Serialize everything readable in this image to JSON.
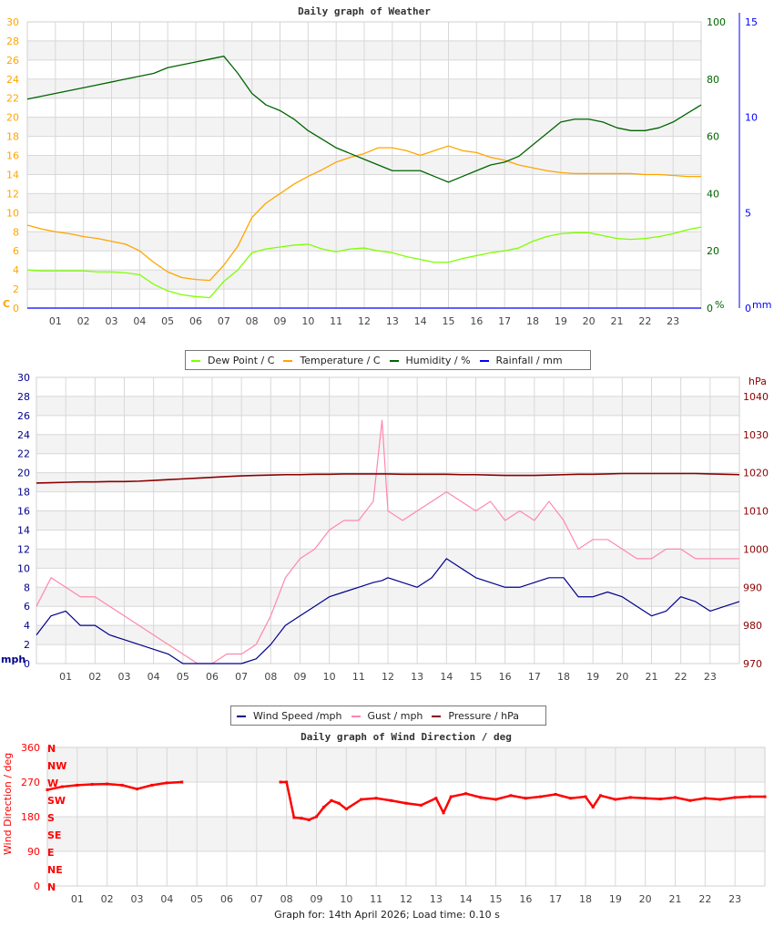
{
  "footer": "Graph for: 14th April 2026; Load time: 0.10 s",
  "colors": {
    "dew_point": "#7fff00",
    "temperature": "#ffa500",
    "humidity": "#006400",
    "rainfall": "#0000ff",
    "wind_speed": "#00008b",
    "gust": "#ff88aa",
    "pressure": "#8b0000",
    "direction": "#ff0000"
  },
  "chart_data": [
    {
      "type": "line",
      "title": "Daily graph of Weather",
      "x_ticks": [
        "01",
        "02",
        "03",
        "04",
        "05",
        "06",
        "07",
        "08",
        "09",
        "10",
        "11",
        "12",
        "13",
        "14",
        "15",
        "16",
        "17",
        "18",
        "19",
        "20",
        "21",
        "22",
        "23"
      ],
      "x_range_hours": [
        0,
        24
      ],
      "axes": {
        "left": {
          "label": "C",
          "ylim": [
            0,
            30
          ],
          "ticks": [
            "0",
            "2",
            "4",
            "6",
            "8",
            "10",
            "12",
            "14",
            "16",
            "18",
            "20",
            "22",
            "24",
            "26",
            "28",
            "30"
          ]
        },
        "right1": {
          "label": "%",
          "ylim": [
            0,
            100
          ],
          "ticks": [
            "0",
            "20",
            "40",
            "60",
            "80",
            "100"
          ]
        },
        "right2": {
          "label": "mm",
          "ylim": [
            0,
            15
          ],
          "ticks": [
            "0",
            "5",
            "10",
            "15"
          ]
        }
      },
      "grid": true,
      "legend_position": "bottom",
      "x": [
        0,
        0.5,
        1,
        1.5,
        2,
        2.5,
        3,
        3.5,
        4,
        4.5,
        5,
        5.5,
        6,
        6.5,
        7,
        7.5,
        8,
        8.5,
        9,
        9.5,
        10,
        10.5,
        11,
        11.5,
        12,
        12.5,
        13,
        13.5,
        14,
        14.5,
        15,
        15.5,
        16,
        16.5,
        17,
        17.5,
        18,
        18.5,
        19,
        19.5,
        20,
        20.5,
        21,
        21.5,
        22,
        22.5,
        23,
        23.5,
        24
      ],
      "series": [
        {
          "name": "Dew Point / C",
          "axis": "left",
          "color_key": "dew_point",
          "values": [
            4.0,
            3.9,
            3.9,
            3.9,
            3.9,
            3.8,
            3.8,
            3.7,
            3.5,
            2.5,
            1.8,
            1.4,
            1.2,
            1.1,
            2.8,
            4.0,
            5.8,
            6.2,
            6.4,
            6.6,
            6.7,
            6.2,
            5.9,
            6.2,
            6.3,
            6.0,
            5.8,
            5.4,
            5.1,
            4.8,
            4.8,
            5.2,
            5.5,
            5.8,
            6.0,
            6.3,
            7.0,
            7.5,
            7.8,
            7.9,
            7.9,
            7.6,
            7.3,
            7.2,
            7.3,
            7.5,
            7.8,
            8.2,
            8.5
          ]
        },
        {
          "name": "Temperature / C",
          "axis": "left",
          "color_key": "temperature",
          "values": [
            8.7,
            8.3,
            8.0,
            7.8,
            7.5,
            7.3,
            7.0,
            6.7,
            6.0,
            4.8,
            3.8,
            3.2,
            3.0,
            2.9,
            4.5,
            6.5,
            9.5,
            11.0,
            12.0,
            13.0,
            13.8,
            14.5,
            15.3,
            15.8,
            16.2,
            16.8,
            16.8,
            16.5,
            16.0,
            16.5,
            17.0,
            16.5,
            16.3,
            15.8,
            15.5,
            15.0,
            14.7,
            14.4,
            14.2,
            14.1,
            14.1,
            14.1,
            14.1,
            14.1,
            14.0,
            14.0,
            13.9,
            13.8,
            13.8
          ]
        },
        {
          "name": "Humidity / %",
          "axis": "right1",
          "color_key": "humidity",
          "values": [
            73,
            74,
            75,
            76,
            77,
            78,
            79,
            80,
            81,
            82,
            84,
            85,
            86,
            87,
            88,
            82,
            75,
            71,
            69,
            66,
            62,
            59,
            56,
            54,
            52,
            50,
            48,
            48,
            48,
            46,
            44,
            46,
            48,
            50,
            51,
            53,
            57,
            61,
            65,
            66,
            66,
            65,
            63,
            62,
            62,
            63,
            65,
            68,
            71
          ]
        },
        {
          "name": "Rainfall / mm",
          "axis": "right2",
          "color_key": "rainfall",
          "values": [
            0,
            0,
            0,
            0,
            0,
            0,
            0,
            0,
            0,
            0,
            0,
            0,
            0,
            0,
            0,
            0,
            0,
            0,
            0,
            0,
            0,
            0,
            0,
            0,
            0,
            0,
            0,
            0,
            0,
            0,
            0,
            0,
            0,
            0,
            0,
            0,
            0,
            0,
            0,
            0,
            0,
            0,
            0,
            0,
            0,
            0,
            0,
            0,
            0
          ]
        }
      ]
    },
    {
      "type": "line",
      "title": "",
      "x_ticks": [
        "01",
        "02",
        "03",
        "04",
        "05",
        "06",
        "07",
        "08",
        "09",
        "10",
        "11",
        "12",
        "13",
        "14",
        "15",
        "16",
        "17",
        "18",
        "19",
        "20",
        "21",
        "22",
        "23"
      ],
      "x_range_hours": [
        0,
        24
      ],
      "axes": {
        "left": {
          "label": "mph",
          "ylim": [
            0,
            30
          ],
          "ticks": [
            "0",
            "2",
            "4",
            "6",
            "8",
            "10",
            "12",
            "14",
            "16",
            "18",
            "20",
            "22",
            "24",
            "26",
            "28",
            "30"
          ]
        },
        "right1": {
          "label": "hPa",
          "ylim": [
            970,
            1045
          ],
          "ticks": [
            "970",
            "980",
            "990",
            "1000",
            "1010",
            "1020",
            "1030",
            "1040"
          ]
        }
      },
      "grid": true,
      "legend_position": "bottom",
      "x": [
        0,
        0.5,
        1,
        1.5,
        2,
        2.5,
        3,
        3.5,
        4,
        4.5,
        5,
        5.5,
        6,
        6.5,
        7,
        7.5,
        8,
        8.5,
        9,
        9.5,
        10,
        10.5,
        11,
        11.5,
        11.8,
        12,
        12.5,
        13,
        13.5,
        14,
        14.5,
        15,
        15.5,
        16,
        16.5,
        17,
        17.5,
        18,
        18.5,
        19,
        19.5,
        20,
        20.5,
        21,
        21.5,
        22,
        22.5,
        23,
        23.5,
        24
      ],
      "series": [
        {
          "name": "Wind Speed /mph",
          "axis": "left",
          "color_key": "wind_speed",
          "values": [
            3,
            5,
            5.5,
            4,
            4,
            3,
            2.5,
            2,
            1.5,
            1,
            0,
            0,
            0,
            0,
            0,
            0.5,
            2,
            4,
            5,
            6,
            7,
            7.5,
            8,
            8.5,
            8.7,
            9,
            8.5,
            8,
            9,
            11,
            10,
            9,
            8.5,
            8,
            8,
            8.5,
            9,
            9,
            7,
            7,
            7.5,
            7,
            6,
            5,
            5.5,
            7,
            6.5,
            5.5,
            6,
            6.5
          ]
        },
        {
          "name": "Gust / mph",
          "axis": "left",
          "color_key": "gust",
          "values": [
            6,
            9,
            8,
            7,
            7,
            6,
            5,
            4,
            3,
            2,
            1,
            0,
            0,
            1,
            1,
            2,
            5,
            9,
            11,
            12,
            14,
            15,
            15,
            17,
            25.5,
            16,
            15,
            16,
            17,
            18,
            17,
            16,
            17,
            15,
            16,
            15,
            17,
            15,
            12,
            13,
            13,
            12,
            11,
            11,
            12,
            12,
            11,
            11,
            11,
            11
          ]
        },
        {
          "name": "Pressure / hPa",
          "axis": "right1",
          "color_key": "pressure",
          "values": [
            1017.3,
            1017.4,
            1017.5,
            1017.6,
            1017.6,
            1017.7,
            1017.7,
            1017.8,
            1018.0,
            1018.2,
            1018.4,
            1018.6,
            1018.8,
            1019.0,
            1019.2,
            1019.3,
            1019.4,
            1019.5,
            1019.5,
            1019.6,
            1019.6,
            1019.7,
            1019.7,
            1019.7,
            1019.7,
            1019.7,
            1019.6,
            1019.6,
            1019.6,
            1019.6,
            1019.5,
            1019.5,
            1019.4,
            1019.3,
            1019.3,
            1019.3,
            1019.4,
            1019.5,
            1019.6,
            1019.6,
            1019.7,
            1019.8,
            1019.8,
            1019.8,
            1019.8,
            1019.8,
            1019.8,
            1019.7,
            1019.6,
            1019.5
          ]
        }
      ]
    },
    {
      "type": "scatter",
      "title": "Daily graph of Wind Direction / deg",
      "x_ticks": [
        "01",
        "02",
        "03",
        "04",
        "05",
        "06",
        "07",
        "08",
        "09",
        "10",
        "11",
        "12",
        "13",
        "14",
        "15",
        "16",
        "17",
        "18",
        "19",
        "20",
        "21",
        "22",
        "23"
      ],
      "x_range_hours": [
        0,
        24
      ],
      "axes": {
        "left": {
          "label": "Wind Direction / deg",
          "ylim": [
            0,
            360
          ],
          "ticks": [
            "0",
            "90",
            "180",
            "270",
            "360"
          ]
        },
        "compass": [
          "N",
          "NE",
          "E",
          "SE",
          "S",
          "SW",
          "W",
          "NW",
          "N"
        ]
      },
      "grid": true,
      "x": [
        0,
        0.5,
        1,
        1.5,
        2,
        2.5,
        3,
        3.5,
        4,
        4.5,
        5,
        5.5,
        6,
        6.5,
        7,
        7.5,
        7.8,
        8,
        8.25,
        8.5,
        8.75,
        9,
        9.25,
        9.5,
        9.75,
        10,
        10.5,
        11,
        11.5,
        12,
        12.5,
        13,
        13.25,
        13.5,
        14,
        14.5,
        15,
        15.5,
        16,
        16.5,
        17,
        17.5,
        18,
        18.25,
        18.5,
        19,
        19.5,
        20,
        20.5,
        21,
        21.5,
        22,
        22.5,
        23,
        23.5,
        24
      ],
      "series": [
        {
          "name": "Wind Direction / deg",
          "axis": "left",
          "color_key": "direction",
          "values": [
            250,
            258,
            262,
            264,
            265,
            262,
            252,
            262,
            268,
            270,
            null,
            null,
            null,
            null,
            null,
            null,
            270,
            270,
            178,
            176,
            172,
            180,
            205,
            222,
            215,
            200,
            225,
            228,
            222,
            215,
            210,
            228,
            190,
            232,
            240,
            230,
            225,
            235,
            228,
            232,
            238,
            228,
            232,
            205,
            235,
            225,
            230,
            228,
            226,
            230,
            222,
            228,
            225,
            230,
            232,
            232
          ]
        }
      ]
    }
  ]
}
